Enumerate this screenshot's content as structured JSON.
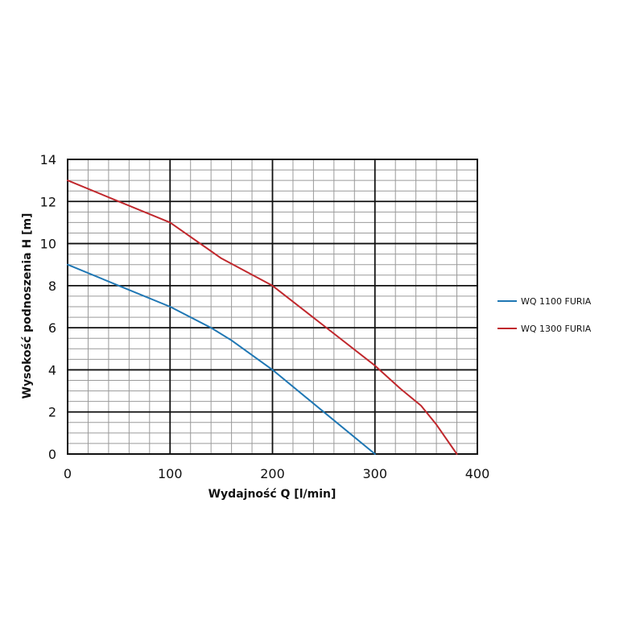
{
  "chart_data": {
    "type": "line",
    "title": "",
    "xlabel": "Wydajność Q [l/min]",
    "ylabel": "Wysokość podnoszenia H [m]",
    "xlim": [
      0,
      400
    ],
    "ylim": [
      0,
      14
    ],
    "xticks": [
      "0",
      "100",
      "200",
      "300",
      "400"
    ],
    "yticks": [
      "0",
      "2",
      "4",
      "6",
      "8",
      "10",
      "12",
      "14"
    ],
    "grid": true,
    "legend_position": "right",
    "series": [
      {
        "name": "WQ 1100 FURIA",
        "color": "#1f77b4",
        "points": [
          [
            0,
            9
          ],
          [
            50,
            8
          ],
          [
            100,
            7
          ],
          [
            140,
            6
          ],
          [
            160,
            5.4
          ],
          [
            200,
            4
          ],
          [
            250,
            2
          ],
          [
            300,
            0
          ]
        ]
      },
      {
        "name": "WQ 1300 FURIA",
        "color": "#c0282d",
        "points": [
          [
            0,
            13
          ],
          [
            50,
            12
          ],
          [
            100,
            11
          ],
          [
            150,
            9.3
          ],
          [
            200,
            8
          ],
          [
            250,
            6.1
          ],
          [
            300,
            4.2
          ],
          [
            325,
            3.1
          ],
          [
            345,
            2.3
          ],
          [
            360,
            1.4
          ],
          [
            380,
            0
          ]
        ]
      }
    ]
  }
}
